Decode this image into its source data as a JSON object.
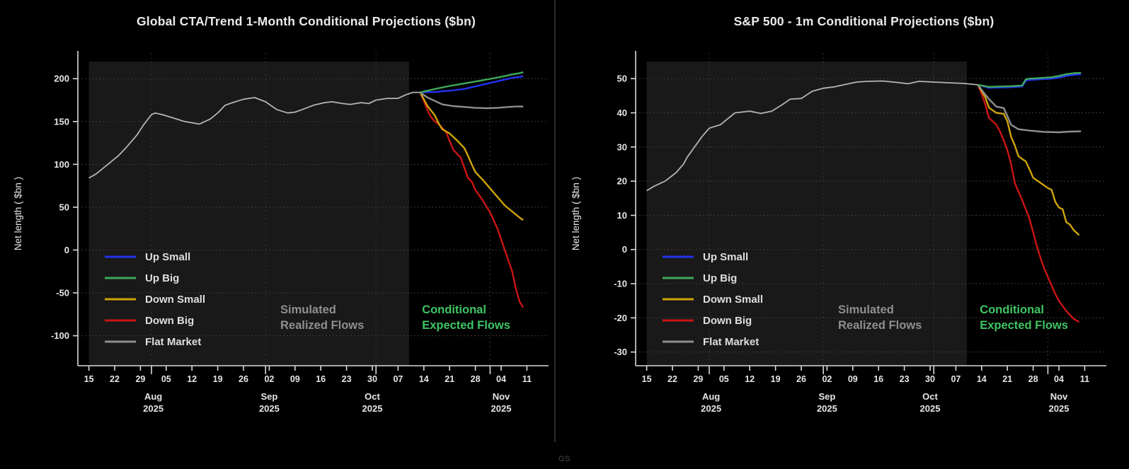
{
  "page": {
    "background": "#000000",
    "footer": "GS",
    "divider_color": "#2b2b2b"
  },
  "style": {
    "axis_color": "#d9d9d9",
    "tick_label_color": "#e6e6e6",
    "grid_color": "#3c3c3c",
    "month_grid_color": "#353535",
    "shade_color": "#191919",
    "legend_text_color": "#dedede",
    "realized_color": "#b4b4b4",
    "annotation_gray": "#8f8f8f",
    "annotation_green": "#3fc463"
  },
  "chart_data": [
    {
      "type": "line",
      "title": "Global CTA/Trend 1-Month Conditional Projections ($bn)",
      "ylabel": "Net length ( $bn )",
      "ylim": [
        -135,
        220
      ],
      "yticks": [
        -100,
        -50,
        0,
        50,
        100,
        150,
        200
      ],
      "xlim": [
        -3,
        122
      ],
      "x_tick_days": [
        0,
        7,
        14,
        21,
        28,
        35,
        42,
        49,
        56,
        63,
        70,
        77,
        84,
        91,
        98,
        105,
        112,
        119
      ],
      "x_tick_labels": [
        "15",
        "22",
        "29",
        "05",
        "12",
        "19",
        "26",
        "02",
        "09",
        "16",
        "23",
        "30",
        "07",
        "14",
        "21",
        "28",
        "04",
        "11"
      ],
      "month_labels": [
        {
          "day": 17.5,
          "text": "Aug",
          "year": "2025"
        },
        {
          "day": 49,
          "text": "Sep",
          "year": "2025"
        },
        {
          "day": 77,
          "text": "Oct",
          "year": "2025"
        },
        {
          "day": 112,
          "text": "Nov",
          "year": "2025"
        }
      ],
      "month_gridline_days": [
        17,
        48,
        78,
        109
      ],
      "shaded_region": {
        "start_day": 0,
        "end_day": 87
      },
      "annotations": [
        {
          "lines": [
            "Simulated",
            "Realized Flows"
          ],
          "day": 52,
          "color": "#8f8f8f"
        },
        {
          "lines": [
            "Conditional",
            "Expected Flows"
          ],
          "day": 90.5,
          "color": "#3fc463"
        }
      ],
      "legend": [
        {
          "label": "Up Small",
          "color": "#2333ee"
        },
        {
          "label": "Up Big",
          "color": "#3fa95a"
        },
        {
          "label": "Down Small",
          "color": "#cfa408"
        },
        {
          "label": "Down Big",
          "color": "#cc1414"
        },
        {
          "label": "Flat Market",
          "color": "#8f8f8f"
        }
      ],
      "series": {
        "realized": {
          "name": "Realized",
          "color": "#b4b4b4",
          "days": [
            0,
            2,
            4,
            6,
            8,
            10,
            13,
            15,
            17,
            18,
            20,
            23,
            26,
            30,
            33,
            35,
            37,
            39,
            42,
            45,
            48,
            51,
            54,
            56,
            58,
            61,
            64,
            66,
            69,
            71,
            74,
            76,
            78,
            81,
            84,
            86,
            88,
            90
          ],
          "values": [
            84,
            89,
            96,
            103,
            110,
            119,
            134,
            147,
            158,
            160,
            158,
            154,
            150,
            147,
            153,
            160,
            169,
            172,
            176,
            178,
            173,
            164,
            160,
            161,
            164,
            169,
            172,
            173,
            171,
            170,
            172,
            171,
            175,
            177,
            177,
            181,
            184,
            184
          ]
        },
        "projections": [
          {
            "name": "Up Big",
            "color": "#3fa95a",
            "days": [
              90,
              94,
              98,
              102,
              106,
              110,
              113,
              115,
              117,
              118
            ],
            "values": [
              184,
              188,
              191.5,
              194.5,
              197.5,
              200.5,
              203,
              205,
              206.5,
              207.5
            ]
          },
          {
            "name": "Up Small",
            "color": "#2333ee",
            "days": [
              90,
              94,
              98,
              102,
              104,
              107,
              110,
              113,
              115,
              117,
              118
            ],
            "values": [
              184,
              184.5,
              186,
              188,
              190,
              193,
              196,
              199,
              201,
              202,
              203
            ]
          },
          {
            "name": "Flat Market",
            "color": "#8f8f8f",
            "days": [
              90,
              92,
              94,
              96,
              99,
              102,
              105,
              108,
              111,
              114,
              116,
              118
            ],
            "values": [
              184,
              178,
              174,
              170,
              168,
              167,
              166,
              165.5,
              166,
              167,
              167.5,
              167.5
            ]
          },
          {
            "name": "Down Small",
            "color": "#cfa408",
            "days": [
              90,
              91,
              92,
              94,
              95,
              96,
              98,
              100,
              102,
              103,
              104,
              105,
              107,
              109,
              111,
              113,
              115,
              117,
              118
            ],
            "values": [
              184,
              176,
              168,
              157,
              148,
              141,
              136,
              128,
              119,
              110,
              100,
              91,
              82,
              72,
              62,
              52,
              45,
              38,
              35
            ]
          },
          {
            "name": "Down Big",
            "color": "#cc1414",
            "days": [
              90,
              91,
              92,
              93,
              94,
              95,
              97,
              99,
              101,
              103,
              104,
              105,
              107,
              109,
              111,
              113,
              115,
              116,
              117,
              118
            ],
            "values": [
              184,
              174,
              163,
              155,
              150,
              147,
              138,
              117,
              108,
              84,
              80,
              70,
              58,
              44,
              25,
              0,
              -25,
              -45,
              -60,
              -67
            ]
          }
        ]
      }
    },
    {
      "type": "line",
      "title": "S&P 500 - 1m Conditional Projections ($bn)",
      "ylabel": "Net length ( $bn )",
      "ylim": [
        -34,
        55
      ],
      "yticks": [
        -30,
        -20,
        -10,
        0,
        10,
        20,
        30,
        40,
        50
      ],
      "xlim": [
        -3,
        122
      ],
      "x_tick_days": [
        0,
        7,
        14,
        21,
        28,
        35,
        42,
        49,
        56,
        63,
        70,
        77,
        84,
        91,
        98,
        105,
        112,
        119
      ],
      "x_tick_labels": [
        "15",
        "22",
        "29",
        "05",
        "12",
        "19",
        "26",
        "02",
        "09",
        "16",
        "23",
        "30",
        "07",
        "14",
        "21",
        "28",
        "04",
        "11"
      ],
      "month_labels": [
        {
          "day": 17.5,
          "text": "Aug",
          "year": "2025"
        },
        {
          "day": 49,
          "text": "Sep",
          "year": "2025"
        },
        {
          "day": 77,
          "text": "Oct",
          "year": "2025"
        },
        {
          "day": 112,
          "text": "Nov",
          "year": "2025"
        }
      ],
      "month_gridline_days": [
        17,
        48,
        78,
        109
      ],
      "shaded_region": {
        "start_day": 0,
        "end_day": 87
      },
      "annotations": [
        {
          "lines": [
            "Simulated",
            "Realized Flows"
          ],
          "day": 52,
          "color": "#8f8f8f"
        },
        {
          "lines": [
            "Conditional",
            "Expected Flows"
          ],
          "day": 90.5,
          "color": "#3fc463"
        }
      ],
      "legend": [
        {
          "label": "Up Small",
          "color": "#2333ee"
        },
        {
          "label": "Up Big",
          "color": "#3fa95a"
        },
        {
          "label": "Down Small",
          "color": "#cfa408"
        },
        {
          "label": "Down Big",
          "color": "#cc1414"
        },
        {
          "label": "Flat Market",
          "color": "#8f8f8f"
        }
      ],
      "series": {
        "realized": {
          "name": "Realized",
          "color": "#b4b4b4",
          "days": [
            0,
            2,
            5,
            8,
            10,
            11,
            13,
            15,
            17,
            20,
            24,
            28,
            31,
            34,
            37,
            39,
            42,
            45,
            48,
            51,
            54,
            57,
            60,
            64,
            68,
            71,
            74,
            78,
            82,
            86,
            90
          ],
          "values": [
            17.2,
            18.5,
            20,
            22.5,
            25,
            27,
            30,
            33,
            35.5,
            36.5,
            40,
            40.5,
            39.8,
            40.5,
            42.5,
            44,
            44.2,
            46.3,
            47.2,
            47.6,
            48.3,
            49,
            49.2,
            49.3,
            48.9,
            48.5,
            49.2,
            49,
            48.8,
            48.6,
            48.2
          ]
        },
        "projections": [
          {
            "name": "Up Big",
            "color": "#3fa95a",
            "days": [
              90,
              93,
              96,
              99,
              102,
              103,
              104,
              107,
              110,
              112,
              114,
              116,
              118
            ],
            "values": [
              48.2,
              47.6,
              47.7,
              47.8,
              48,
              49.8,
              50,
              50.2,
              50.4,
              50.8,
              51.3,
              51.6,
              51.7
            ]
          },
          {
            "name": "Up Small",
            "color": "#2333ee",
            "days": [
              90,
              93,
              96,
              99,
              102,
              103,
              104,
              107,
              110,
              112,
              114,
              116,
              118
            ],
            "values": [
              48.2,
              47.3,
              47.4,
              47.5,
              47.7,
              49.4,
              49.6,
              49.8,
              50,
              50.3,
              50.8,
              51.1,
              51.3
            ]
          },
          {
            "name": "Flat Market",
            "color": "#8f8f8f",
            "days": [
              90,
              91.5,
              93,
              95,
              97,
              98,
              99,
              101,
              104,
              108,
              112,
              115,
              118
            ],
            "values": [
              48.2,
              46,
              44,
              41.8,
              41.4,
              39,
              36.5,
              35.2,
              34.8,
              34.4,
              34.3,
              34.5,
              34.6
            ]
          },
          {
            "name": "Down Small",
            "color": "#cfa408",
            "days": [
              90,
              92,
              93,
              95,
              97,
              98,
              99,
              100,
              101,
              102,
              103,
              104,
              105,
              107,
              109,
              110,
              111,
              112,
              113,
              114,
              115,
              116,
              117.5
            ],
            "values": [
              48.2,
              44.5,
              41.5,
              40,
              39.7,
              37.5,
              33,
              30.5,
              27.3,
              26.5,
              25.8,
              23.5,
              21,
              19.5,
              18,
              17.5,
              14,
              12.3,
              11.8,
              8,
              7.3,
              5.7,
              4.2
            ]
          },
          {
            "name": "Down Big",
            "color": "#cc1414",
            "days": [
              90,
              91,
              92,
              93,
              95,
              96,
              97,
              98,
              99,
              100,
              101,
              102,
              104,
              105,
              106,
              107,
              108,
              109,
              110,
              111,
              112,
              113,
              114,
              116,
              117.5
            ],
            "values": [
              48.2,
              45.5,
              42.5,
              38.5,
              36.5,
              34.5,
              32,
              29,
              25,
              19.5,
              17,
              14.5,
              9,
              5,
              1,
              -2.5,
              -5.5,
              -8,
              -10.5,
              -13,
              -15,
              -16.5,
              -18,
              -20.3,
              -21.2
            ]
          }
        ]
      }
    }
  ]
}
